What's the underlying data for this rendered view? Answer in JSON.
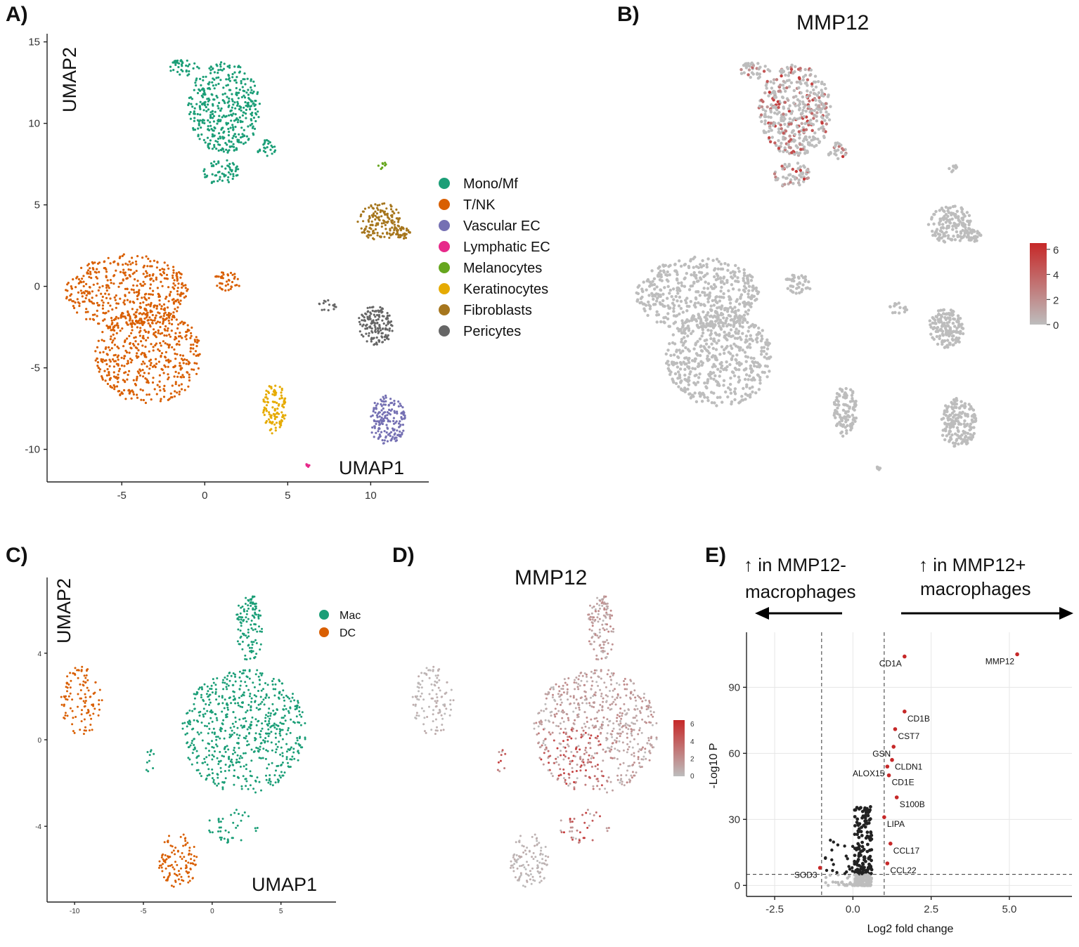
{
  "panel_labels": {
    "a": "A)",
    "b": "B)",
    "c": "C)",
    "d": "D)",
    "e": "E)"
  },
  "chart_data": [
    {
      "id": "A",
      "type": "scatter",
      "title": "",
      "xlabel": "UMAP1",
      "ylabel": "UMAP2",
      "xlim": [
        -9.5,
        13.5
      ],
      "ylim": [
        -12,
        15.5
      ],
      "xticks": [
        -5,
        0,
        5,
        10
      ],
      "yticks": [
        -10,
        -5,
        0,
        5,
        10,
        15
      ],
      "legend": [
        {
          "name": "Mono/Mf",
          "color": "#1b9e77"
        },
        {
          "name": "T/NK",
          "color": "#d95f02"
        },
        {
          "name": "Vascular EC",
          "color": "#7570b3"
        },
        {
          "name": "Lymphatic EC",
          "color": "#e7298a"
        },
        {
          "name": "Melanocytes",
          "color": "#66a61e"
        },
        {
          "name": "Keratinocytes",
          "color": "#e6ab02"
        },
        {
          "name": "Fibroblasts",
          "color": "#a6761d"
        },
        {
          "name": "Pericytes",
          "color": "#666666"
        }
      ],
      "clusters": [
        {
          "name": "Mono/Mf",
          "cx": 1.2,
          "cy": 11.0,
          "rx": 2.2,
          "ry": 2.8,
          "n": 420
        },
        {
          "name": "Mono/Mf",
          "cx": -1.3,
          "cy": 13.4,
          "rx": 1.0,
          "ry": 0.5,
          "n": 40
        },
        {
          "name": "Mono/Mf",
          "cx": 1.0,
          "cy": 7.0,
          "rx": 1.1,
          "ry": 0.8,
          "n": 60
        },
        {
          "name": "Mono/Mf",
          "cx": 3.7,
          "cy": 8.5,
          "rx": 0.6,
          "ry": 0.5,
          "n": 25
        },
        {
          "name": "T/NK",
          "cx": -4.7,
          "cy": -0.3,
          "rx": 3.7,
          "ry": 2.3,
          "n": 450
        },
        {
          "name": "T/NK",
          "cx": -3.4,
          "cy": -4.2,
          "rx": 3.2,
          "ry": 3.0,
          "n": 500
        },
        {
          "name": "T/NK",
          "cx": 1.3,
          "cy": 0.3,
          "rx": 0.9,
          "ry": 0.6,
          "n": 40
        },
        {
          "name": "Melanocytes",
          "cx": 10.7,
          "cy": 7.4,
          "rx": 0.25,
          "ry": 0.25,
          "n": 8
        },
        {
          "name": "Fibroblasts",
          "cx": 10.5,
          "cy": 4.0,
          "rx": 1.3,
          "ry": 1.2,
          "n": 150
        },
        {
          "name": "Fibroblasts",
          "cx": 11.8,
          "cy": 3.3,
          "rx": 0.6,
          "ry": 0.4,
          "n": 35
        },
        {
          "name": "Pericytes",
          "cx": 10.3,
          "cy": -2.4,
          "rx": 1.1,
          "ry": 1.2,
          "n": 150
        },
        {
          "name": "Pericytes",
          "cx": 7.4,
          "cy": -1.2,
          "rx": 0.6,
          "ry": 0.35,
          "n": 15
        },
        {
          "name": "Keratinocytes",
          "cx": 4.2,
          "cy": -7.5,
          "rx": 0.7,
          "ry": 1.6,
          "n": 110
        },
        {
          "name": "Vascular EC",
          "cx": 11.0,
          "cy": -8.2,
          "rx": 1.1,
          "ry": 1.5,
          "n": 170
        },
        {
          "name": "Lymphatic EC",
          "cx": 6.2,
          "cy": -11.0,
          "rx": 0.2,
          "ry": 0.12,
          "n": 6
        }
      ]
    },
    {
      "id": "B",
      "type": "scatter",
      "title": "MMP12",
      "color_scale": {
        "min": 0,
        "max": 6.5,
        "ticks": [
          "6",
          "4",
          "2",
          "0"
        ],
        "low": "#bdbdbd",
        "high": "#c62828"
      },
      "note": "Same embedding as A; expression high in Mono/Mf cluster"
    },
    {
      "id": "C",
      "type": "scatter",
      "title": "",
      "xlabel": "UMAP1",
      "ylabel": "UMAP2",
      "xlim": [
        -12,
        9
      ],
      "ylim": [
        -7.5,
        7.5
      ],
      "xticks": [
        -10,
        -5,
        0,
        5
      ],
      "yticks": [
        -4,
        0,
        4
      ],
      "legend": [
        {
          "name": "Mac",
          "color": "#1b9e77"
        },
        {
          "name": "DC",
          "color": "#d95f02"
        }
      ],
      "clusters": [
        {
          "name": "Mac",
          "cx": 2.3,
          "cy": 0.4,
          "rx": 4.5,
          "ry": 2.9,
          "n": 650
        },
        {
          "name": "Mac",
          "cx": 2.7,
          "cy": 5.2,
          "rx": 1.0,
          "ry": 1.6,
          "n": 120
        },
        {
          "name": "Mac",
          "cx": 1.5,
          "cy": -4.0,
          "rx": 1.8,
          "ry": 0.8,
          "n": 40
        },
        {
          "name": "Mac",
          "cx": -4.5,
          "cy": -1.0,
          "rx": 0.5,
          "ry": 0.6,
          "n": 10
        },
        {
          "name": "DC",
          "cx": -9.5,
          "cy": 1.8,
          "rx": 1.5,
          "ry": 1.6,
          "n": 110
        },
        {
          "name": "DC",
          "cx": -2.5,
          "cy": -5.6,
          "rx": 1.4,
          "ry": 1.3,
          "n": 110
        }
      ]
    },
    {
      "id": "D",
      "type": "scatter",
      "title": "MMP12",
      "color_scale": {
        "min": 0,
        "max": 6.5,
        "ticks": [
          "6",
          "4",
          "2",
          "0"
        ],
        "low": "#bdbdbd",
        "high": "#c62828"
      }
    },
    {
      "id": "E",
      "type": "scatter",
      "title": "",
      "xlabel": "Log2 fold change",
      "ylabel": "-Log10 P",
      "xlim": [
        -3.4,
        7.0
      ],
      "ylim": [
        -5,
        115
      ],
      "xticks": [
        "-2.5",
        "0.0",
        "2.5",
        "5.0"
      ],
      "yticks": [
        "0",
        "30",
        "60",
        "90"
      ],
      "xtick_values": [
        -2.5,
        0,
        2.5,
        5.0
      ],
      "ytick_values": [
        0,
        30,
        60,
        90
      ],
      "thresholds": {
        "x": [
          -1,
          1
        ],
        "y": 5
      },
      "annotation_left": [
        "↑ in MMP12-",
        "macrophages"
      ],
      "annotation_right": [
        "↑ in MMP12+",
        "macrophages"
      ],
      "labeled_genes": [
        {
          "gene": "MMP12",
          "x": 5.25,
          "y": 105
        },
        {
          "gene": "CD1A",
          "x": 1.65,
          "y": 104
        },
        {
          "gene": "CD1B",
          "x": 1.65,
          "y": 79
        },
        {
          "gene": "CST7",
          "x": 1.35,
          "y": 71
        },
        {
          "gene": "GSN",
          "x": 1.3,
          "y": 63
        },
        {
          "gene": "CLDN1",
          "x": 1.25,
          "y": 57
        },
        {
          "gene": "ALOX15",
          "x": 1.1,
          "y": 54
        },
        {
          "gene": "CD1E",
          "x": 1.15,
          "y": 50
        },
        {
          "gene": "S100B",
          "x": 1.4,
          "y": 40
        },
        {
          "gene": "LIPA",
          "x": 1.0,
          "y": 31
        },
        {
          "gene": "CCL17",
          "x": 1.2,
          "y": 19
        },
        {
          "gene": "SOD3",
          "x": -1.05,
          "y": 8
        },
        {
          "gene": "CCL22",
          "x": 1.1,
          "y": 10
        }
      ]
    }
  ]
}
